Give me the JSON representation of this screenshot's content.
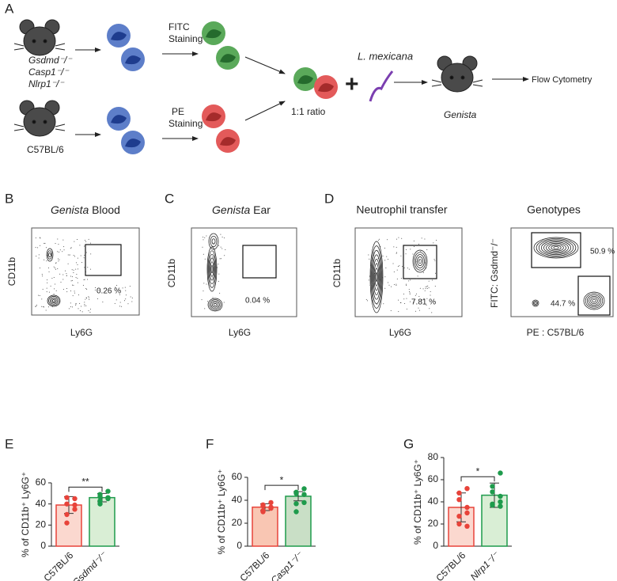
{
  "panels": [
    "A",
    "B",
    "C",
    "D",
    "E",
    "F",
    "G"
  ],
  "schematic": {
    "knockouts": [
      "Gsdmd⁻/⁻",
      "Casp1⁻/⁻",
      "Nlrp1⁻/⁻"
    ],
    "wildtype": "C57BL/6",
    "fitc": [
      "FITC",
      "Staining"
    ],
    "pe": [
      "PE",
      "Staining"
    ],
    "ratio": "1:1 ratio",
    "plus": "+",
    "parasite": "L. mexicana",
    "recipient": "Genista",
    "readout": "Flow Cytometry"
  },
  "flow": [
    {
      "title_italic": "Genista",
      "title": "Blood",
      "y_label": "CD11b",
      "x_label": "Ly6G",
      "gates": [
        "0.26 %"
      ]
    },
    {
      "title_italic": "Genista",
      "title": "Ear",
      "y_label": "CD11b",
      "x_label": "Ly6G",
      "gates": [
        "0.04 %"
      ]
    },
    {
      "title": "Neutrophil transfer",
      "y_label": "CD11b",
      "x_label": "Ly6G",
      "gates": [
        "7.81 %"
      ]
    },
    {
      "title": "Genotypes",
      "y_label": "FITC: Gsdmd⁻/⁻",
      "x_label": "PE : C57BL/6",
      "gates": [
        "50.9 %",
        "44.7 %"
      ]
    }
  ],
  "chart_data": [
    {
      "type": "bar",
      "y_label": "% of CD11b⁺ Ly6G⁺",
      "categories": [
        "C57BL/6",
        "Gsdmd⁻/⁻"
      ],
      "values": [
        39,
        46
      ],
      "errors": [
        8,
        4
      ],
      "points": [
        [
          45,
          46,
          40,
          39,
          35,
          30,
          22
        ],
        [
          52,
          49,
          47,
          46,
          45,
          43,
          40
        ]
      ],
      "colors": [
        "#e8433a",
        "#1e9b4c"
      ],
      "fill_colors": [
        "#fbd8cf",
        "#d9eed5"
      ],
      "significance": "**",
      "ylim": [
        0,
        60
      ],
      "yticks": [
        0,
        20,
        40,
        60
      ]
    },
    {
      "type": "bar",
      "y_label": "% of CD11b⁺ Ly6G⁺",
      "categories": [
        "C57BL/6",
        "Casp1⁻/⁻"
      ],
      "values": [
        34,
        43.5
      ],
      "errors": [
        3,
        4
      ],
      "points": [
        [
          38,
          36,
          35,
          34,
          33,
          31,
          30
        ],
        [
          50,
          47,
          46,
          45,
          38,
          37,
          30
        ]
      ],
      "colors": [
        "#e8433a",
        "#1e9b4c"
      ],
      "fill_colors": [
        "#f9c6b3",
        "#c9dfc6"
      ],
      "significance": "*",
      "ylim": [
        0,
        60
      ],
      "yticks": [
        0,
        20,
        40,
        60
      ]
    },
    {
      "type": "bar",
      "y_label": "% of CD11b⁺ Ly6G⁺",
      "categories": [
        "C57BL/6",
        "Nlrp1⁻/⁻"
      ],
      "values": [
        35,
        46
      ],
      "errors": [
        13,
        11
      ],
      "points": [
        [
          52,
          48,
          42,
          35,
          30,
          27,
          20,
          18
        ],
        [
          66,
          54,
          49,
          45,
          40,
          38,
          37,
          36
        ]
      ],
      "colors": [
        "#e8433a",
        "#1e9b4c"
      ],
      "fill_colors": [
        "#fbd8cf",
        "#d9eed5"
      ],
      "significance": "*",
      "ylim": [
        0,
        80
      ],
      "yticks": [
        0,
        20,
        40,
        60,
        80
      ]
    }
  ]
}
